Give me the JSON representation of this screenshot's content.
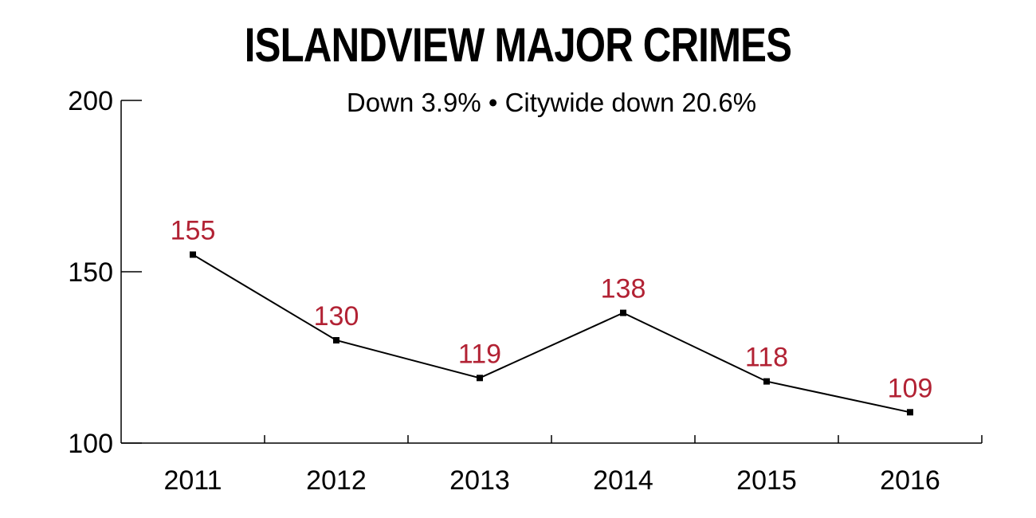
{
  "chart_data": {
    "type": "line",
    "title": "ISLANDVIEW MAJOR CRIMES",
    "subtitle": "Down 3.9% • Citywide down 20.6%",
    "xlabel": "",
    "ylabel": "",
    "ylim": [
      100,
      200
    ],
    "yticks": [
      100,
      150,
      200
    ],
    "categories": [
      "2011",
      "2012",
      "2013",
      "2014",
      "2015",
      "2016"
    ],
    "values": [
      155,
      130,
      119,
      138,
      118,
      109
    ],
    "data_labels": [
      "155",
      "130",
      "119",
      "138",
      "118",
      "109"
    ],
    "grid": false,
    "legend": "none",
    "colors": {
      "line": "#000000",
      "label": "#b22234"
    }
  }
}
